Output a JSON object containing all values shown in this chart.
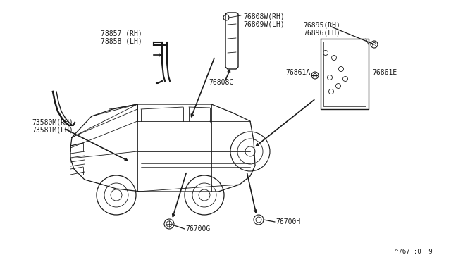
{
  "bg_color": "#ffffff",
  "line_color": "#1a1a1a",
  "text_color": "#1a1a1a",
  "diagram_ref": "^767 :0  9",
  "labels": {
    "78857_78858": "78857 (RH)\n78858 (LH)",
    "73580_73581": "73580M(RH)\n73581M(LH)",
    "76808w_76809w": "76808W(RH)\n76809W(LH)",
    "76808c": "76808C",
    "76895_76896": "76895(RH)\n76896(LH)",
    "76861A": "76861A",
    "76861E": "76861E",
    "76700G": "76700G",
    "76700H": "76700H"
  }
}
